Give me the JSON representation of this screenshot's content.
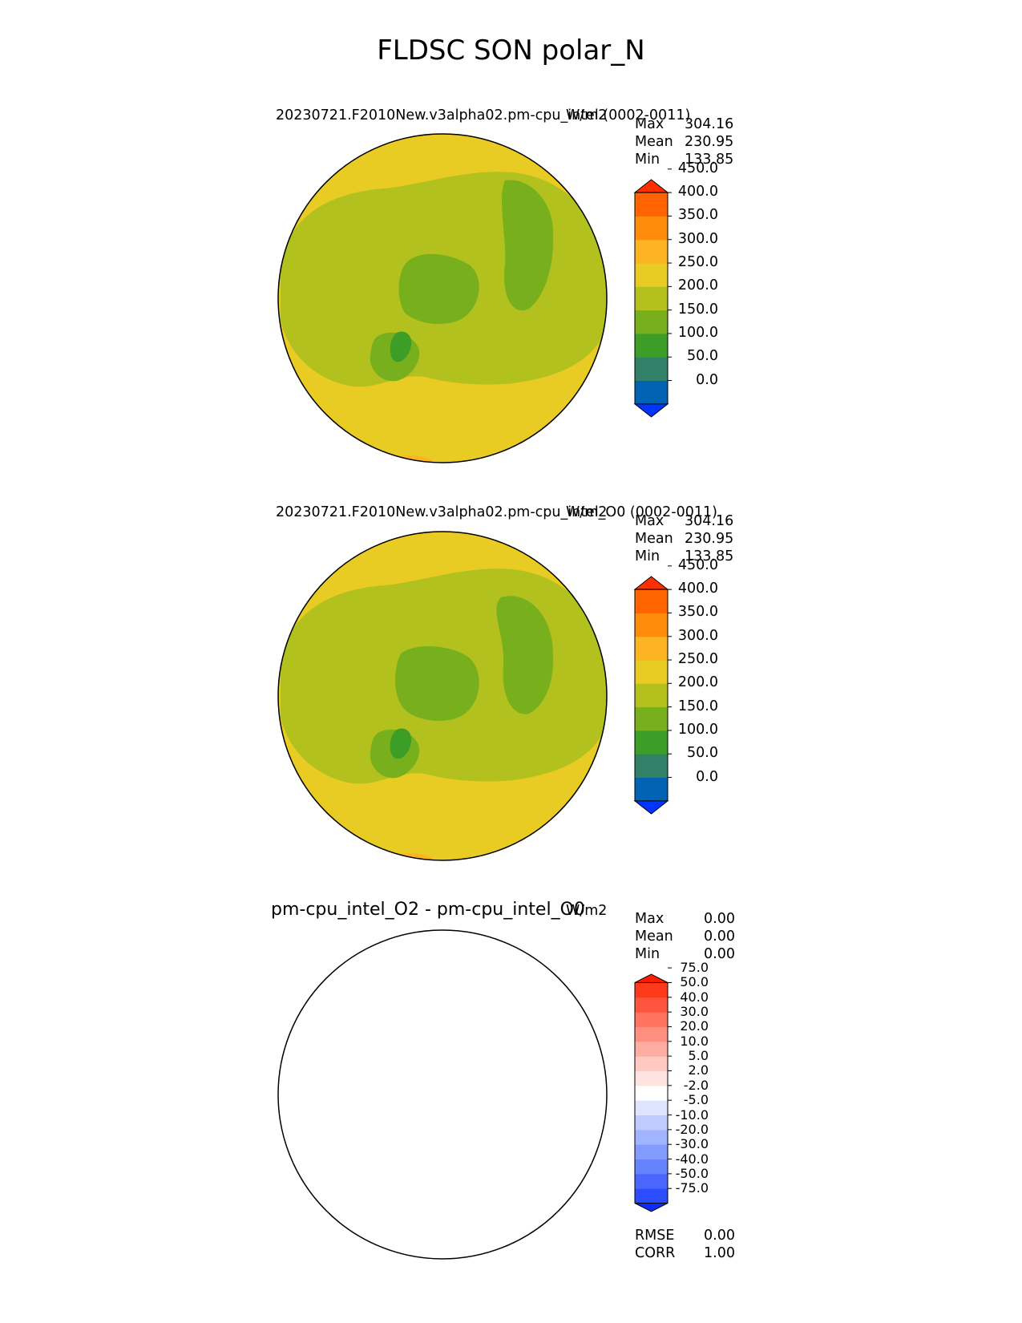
{
  "suptitle": "FLDSC SON polar_N",
  "panels": [
    {
      "title_left": "20230721.F2010New.v3alpha02.pm-cpu_intel (0002-0011)",
      "units": "W/m2",
      "stats": {
        "max_label": "Max",
        "max": "304.16",
        "mean_label": "Mean",
        "mean": "230.95",
        "min_label": "Min",
        "min": "133.85"
      },
      "colorbar": {
        "levels": [
          "0.0",
          "50.0",
          "100.0",
          "150.0",
          "200.0",
          "250.0",
          "300.0",
          "350.0",
          "400.0",
          "450.0"
        ],
        "colors": [
          "#0034ff",
          "#0063b3",
          "#328068",
          "#3d9e27",
          "#78b01d",
          "#b3c11f",
          "#e8cb23",
          "#fcb423",
          "#ff8c08",
          "#ff6400",
          "#ff2f00"
        ]
      }
    },
    {
      "title_left": "20230721.F2010New.v3alpha02.pm-cpu_intel_O0 (0002-0011)",
      "units": "W/m2",
      "stats": {
        "max_label": "Max",
        "max": "304.16",
        "mean_label": "Mean",
        "mean": "230.95",
        "min_label": "Min",
        "min": "133.85"
      },
      "colorbar": {
        "levels": [
          "0.0",
          "50.0",
          "100.0",
          "150.0",
          "200.0",
          "250.0",
          "300.0",
          "350.0",
          "400.0",
          "450.0"
        ],
        "colors": [
          "#0034ff",
          "#0063b3",
          "#328068",
          "#3d9e27",
          "#78b01d",
          "#b3c11f",
          "#e8cb23",
          "#fcb423",
          "#ff8c08",
          "#ff6400",
          "#ff2f00"
        ]
      }
    },
    {
      "title_left": "pm-cpu_intel_O2 - pm-cpu_intel_O0",
      "units": "W/m2",
      "stats": {
        "max_label": "Max",
        "max": "0.00",
        "mean_label": "Mean",
        "mean": "0.00",
        "min_label": "Min",
        "min": "0.00"
      },
      "colorbar": {
        "levels": [
          "-75.0",
          "-50.0",
          "-40.0",
          "-30.0",
          "-20.0",
          "-10.0",
          "-5.0",
          "-2.0",
          "2.0",
          "5.0",
          "10.0",
          "20.0",
          "30.0",
          "40.0",
          "50.0",
          "75.0"
        ],
        "colors": [
          "#0a2cff",
          "#2c4dff",
          "#4a66ff",
          "#6683ff",
          "#839bff",
          "#a0b4ff",
          "#c0ccff",
          "#dfe5ff",
          "#ffffff",
          "#ffe3e0",
          "#ffc9c2",
          "#ffaca2",
          "#ff8f80",
          "#ff735f",
          "#ff553e",
          "#ff3a1c",
          "#ff1e00"
        ]
      },
      "footer": {
        "rmse_label": "RMSE",
        "rmse": "0.00",
        "corr_label": "CORR",
        "corr": "1.00"
      }
    }
  ]
}
